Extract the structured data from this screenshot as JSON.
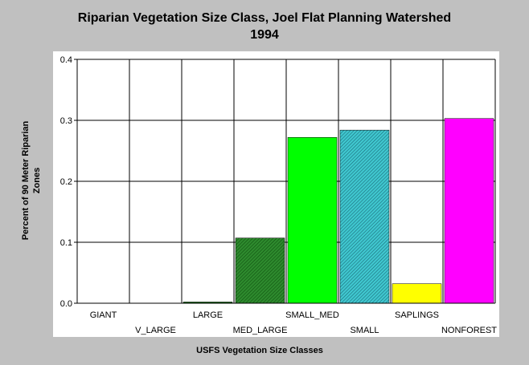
{
  "chart_data": {
    "type": "bar",
    "title": [
      "Riparian Vegetation Size Class, Joel Flat Planning Watershed",
      "1994"
    ],
    "xlabel": "USFS Vegetation Size Classes",
    "ylabel": [
      "Percent of 90 Meter Riparian",
      "Zones"
    ],
    "ylim": [
      0,
      0.4
    ],
    "yticks": [
      "0.0",
      "0.1",
      "0.2",
      "0.3",
      "0.4"
    ],
    "grid": true,
    "categories": [
      "GIANT",
      "V_LARGE",
      "LARGE",
      "MED_LARGE",
      "SMALL_MED",
      "SMALL",
      "SAPLINGS",
      "NONFOREST"
    ],
    "values": [
      0.0,
      0.0,
      0.002,
      0.107,
      0.272,
      0.284,
      0.032,
      0.303
    ],
    "colors": [
      "#006400",
      "#006400",
      "#006400",
      "#2e8b2e",
      "#00ff00",
      "#40c8d0",
      "#ffff00",
      "#ff00ff"
    ],
    "patterns": [
      "solid",
      "solid",
      "solid",
      "hatch",
      "solid",
      "hatch",
      "solid",
      "solid"
    ]
  }
}
